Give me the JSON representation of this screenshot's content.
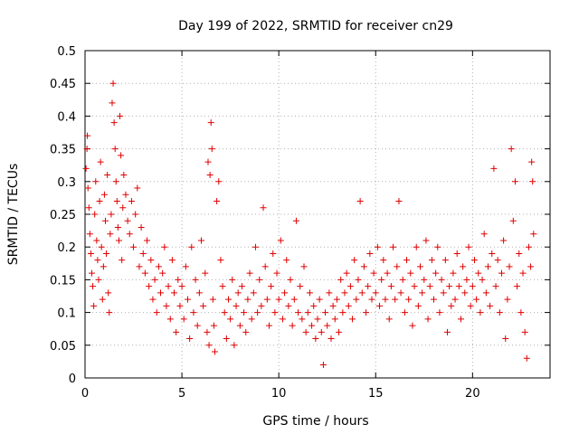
{
  "chart_data": {
    "type": "scatter",
    "title": "Day 199 of 2022, SRMTID for receiver cn29",
    "xlabel": "GPS time / hours",
    "ylabel": "SRMTID / TECUs",
    "xlim": [
      0,
      24
    ],
    "ylim": [
      0,
      0.5
    ],
    "x_ticks": [
      0,
      5,
      10,
      15,
      20
    ],
    "x_tick_labels": [
      "0",
      "5",
      "10",
      "15",
      "20"
    ],
    "y_ticks": [
      0,
      0.05,
      0.1,
      0.15,
      0.2,
      0.25,
      0.3,
      0.35,
      0.4,
      0.45,
      0.5
    ],
    "y_tick_labels": [
      "0",
      "0.05",
      "0.1",
      "0.15",
      "0.2",
      "0.25",
      "0.3",
      "0.35",
      "0.4",
      "0.45",
      "0.5"
    ],
    "grid": true,
    "marker": "plus",
    "series_color": "#e00000",
    "series": [
      {
        "name": "SRMTID",
        "points": [
          [
            0.05,
            0.32
          ],
          [
            0.1,
            0.35
          ],
          [
            0.12,
            0.37
          ],
          [
            0.15,
            0.29
          ],
          [
            0.2,
            0.26
          ],
          [
            0.25,
            0.22
          ],
          [
            0.3,
            0.19
          ],
          [
            0.35,
            0.16
          ],
          [
            0.4,
            0.14
          ],
          [
            0.45,
            0.11
          ],
          [
            0.5,
            0.25
          ],
          [
            0.55,
            0.3
          ],
          [
            0.6,
            0.21
          ],
          [
            0.65,
            0.18
          ],
          [
            0.7,
            0.15
          ],
          [
            0.75,
            0.27
          ],
          [
            0.8,
            0.33
          ],
          [
            0.85,
            0.2
          ],
          [
            0.9,
            0.12
          ],
          [
            0.95,
            0.17
          ],
          [
            1.0,
            0.28
          ],
          [
            1.05,
            0.24
          ],
          [
            1.1,
            0.19
          ],
          [
            1.15,
            0.31
          ],
          [
            1.2,
            0.13
          ],
          [
            1.25,
            0.1
          ],
          [
            1.3,
            0.22
          ],
          [
            1.35,
            0.25
          ],
          [
            1.4,
            0.42
          ],
          [
            1.45,
            0.45
          ],
          [
            1.5,
            0.39
          ],
          [
            1.55,
            0.35
          ],
          [
            1.6,
            0.3
          ],
          [
            1.65,
            0.27
          ],
          [
            1.7,
            0.23
          ],
          [
            1.75,
            0.21
          ],
          [
            1.8,
            0.4
          ],
          [
            1.85,
            0.34
          ],
          [
            1.9,
            0.18
          ],
          [
            1.95,
            0.26
          ],
          [
            2.0,
            0.31
          ],
          [
            2.1,
            0.28
          ],
          [
            2.2,
            0.24
          ],
          [
            2.3,
            0.22
          ],
          [
            2.4,
            0.27
          ],
          [
            2.5,
            0.2
          ],
          [
            2.6,
            0.25
          ],
          [
            2.7,
            0.29
          ],
          [
            2.8,
            0.17
          ],
          [
            2.9,
            0.23
          ],
          [
            3.0,
            0.19
          ],
          [
            3.1,
            0.16
          ],
          [
            3.2,
            0.21
          ],
          [
            3.3,
            0.14
          ],
          [
            3.4,
            0.18
          ],
          [
            3.5,
            0.12
          ],
          [
            3.6,
            0.15
          ],
          [
            3.7,
            0.1
          ],
          [
            3.8,
            0.17
          ],
          [
            3.9,
            0.13
          ],
          [
            4.0,
            0.16
          ],
          [
            4.1,
            0.2
          ],
          [
            4.2,
            0.11
          ],
          [
            4.3,
            0.14
          ],
          [
            4.4,
            0.09
          ],
          [
            4.5,
            0.18
          ],
          [
            4.6,
            0.13
          ],
          [
            4.7,
            0.07
          ],
          [
            4.8,
            0.15
          ],
          [
            4.9,
            0.11
          ],
          [
            5.0,
            0.14
          ],
          [
            5.1,
            0.09
          ],
          [
            5.2,
            0.17
          ],
          [
            5.3,
            0.12
          ],
          [
            5.4,
            0.06
          ],
          [
            5.5,
            0.2
          ],
          [
            5.6,
            0.1
          ],
          [
            5.7,
            0.15
          ],
          [
            5.8,
            0.08
          ],
          [
            5.9,
            0.13
          ],
          [
            6.0,
            0.21
          ],
          [
            6.1,
            0.11
          ],
          [
            6.2,
            0.16
          ],
          [
            6.3,
            0.07
          ],
          [
            6.35,
            0.33
          ],
          [
            6.4,
            0.05
          ],
          [
            6.45,
            0.31
          ],
          [
            6.5,
            0.39
          ],
          [
            6.55,
            0.35
          ],
          [
            6.6,
            0.12
          ],
          [
            6.65,
            0.08
          ],
          [
            6.7,
            0.04
          ],
          [
            6.8,
            0.27
          ],
          [
            6.9,
            0.3
          ],
          [
            7.0,
            0.18
          ],
          [
            7.1,
            0.14
          ],
          [
            7.2,
            0.1
          ],
          [
            7.3,
            0.06
          ],
          [
            7.4,
            0.12
          ],
          [
            7.5,
            0.09
          ],
          [
            7.6,
            0.15
          ],
          [
            7.7,
            0.05
          ],
          [
            7.8,
            0.11
          ],
          [
            7.9,
            0.13
          ],
          [
            8.0,
            0.08
          ],
          [
            8.1,
            0.14
          ],
          [
            8.2,
            0.1
          ],
          [
            8.3,
            0.07
          ],
          [
            8.4,
            0.12
          ],
          [
            8.5,
            0.16
          ],
          [
            8.6,
            0.09
          ],
          [
            8.7,
            0.13
          ],
          [
            8.8,
            0.2
          ],
          [
            8.9,
            0.1
          ],
          [
            9.0,
            0.15
          ],
          [
            9.1,
            0.11
          ],
          [
            9.2,
            0.26
          ],
          [
            9.3,
            0.17
          ],
          [
            9.4,
            0.12
          ],
          [
            9.5,
            0.08
          ],
          [
            9.6,
            0.14
          ],
          [
            9.7,
            0.19
          ],
          [
            9.8,
            0.1
          ],
          [
            9.9,
            0.16
          ],
          [
            10.0,
            0.12
          ],
          [
            10.1,
            0.21
          ],
          [
            10.2,
            0.09
          ],
          [
            10.3,
            0.13
          ],
          [
            10.4,
            0.18
          ],
          [
            10.5,
            0.11
          ],
          [
            10.6,
            0.15
          ],
          [
            10.7,
            0.08
          ],
          [
            10.8,
            0.12
          ],
          [
            10.9,
            0.24
          ],
          [
            11.0,
            0.1
          ],
          [
            11.1,
            0.14
          ],
          [
            11.2,
            0.09
          ],
          [
            11.3,
            0.17
          ],
          [
            11.4,
            0.07
          ],
          [
            11.5,
            0.1
          ],
          [
            11.6,
            0.13
          ],
          [
            11.7,
            0.08
          ],
          [
            11.8,
            0.11
          ],
          [
            11.9,
            0.06
          ],
          [
            12.0,
            0.09
          ],
          [
            12.1,
            0.12
          ],
          [
            12.2,
            0.07
          ],
          [
            12.3,
            0.02
          ],
          [
            12.4,
            0.1
          ],
          [
            12.5,
            0.08
          ],
          [
            12.6,
            0.13
          ],
          [
            12.7,
            0.06
          ],
          [
            12.8,
            0.11
          ],
          [
            12.9,
            0.09
          ],
          [
            13.0,
            0.12
          ],
          [
            13.1,
            0.07
          ],
          [
            13.2,
            0.15
          ],
          [
            13.3,
            0.1
          ],
          [
            13.4,
            0.13
          ],
          [
            13.5,
            0.16
          ],
          [
            13.6,
            0.11
          ],
          [
            13.7,
            0.14
          ],
          [
            13.8,
            0.09
          ],
          [
            13.9,
            0.18
          ],
          [
            14.0,
            0.12
          ],
          [
            14.1,
            0.15
          ],
          [
            14.2,
            0.27
          ],
          [
            14.3,
            0.13
          ],
          [
            14.4,
            0.17
          ],
          [
            14.5,
            0.1
          ],
          [
            14.6,
            0.14
          ],
          [
            14.7,
            0.19
          ],
          [
            14.8,
            0.12
          ],
          [
            14.9,
            0.16
          ],
          [
            15.0,
            0.13
          ],
          [
            15.1,
            0.2
          ],
          [
            15.2,
            0.11
          ],
          [
            15.3,
            0.15
          ],
          [
            15.4,
            0.18
          ],
          [
            15.5,
            0.12
          ],
          [
            15.6,
            0.16
          ],
          [
            15.7,
            0.09
          ],
          [
            15.8,
            0.14
          ],
          [
            15.9,
            0.2
          ],
          [
            16.0,
            0.12
          ],
          [
            16.1,
            0.17
          ],
          [
            16.2,
            0.27
          ],
          [
            16.3,
            0.13
          ],
          [
            16.4,
            0.15
          ],
          [
            16.5,
            0.1
          ],
          [
            16.6,
            0.18
          ],
          [
            16.7,
            0.12
          ],
          [
            16.8,
            0.16
          ],
          [
            16.9,
            0.08
          ],
          [
            17.0,
            0.14
          ],
          [
            17.1,
            0.2
          ],
          [
            17.2,
            0.11
          ],
          [
            17.3,
            0.17
          ],
          [
            17.4,
            0.13
          ],
          [
            17.5,
            0.15
          ],
          [
            17.6,
            0.21
          ],
          [
            17.7,
            0.09
          ],
          [
            17.8,
            0.14
          ],
          [
            17.9,
            0.18
          ],
          [
            18.0,
            0.12
          ],
          [
            18.1,
            0.16
          ],
          [
            18.2,
            0.2
          ],
          [
            18.3,
            0.1
          ],
          [
            18.4,
            0.15
          ],
          [
            18.5,
            0.13
          ],
          [
            18.6,
            0.18
          ],
          [
            18.7,
            0.07
          ],
          [
            18.8,
            0.14
          ],
          [
            18.9,
            0.11
          ],
          [
            19.0,
            0.16
          ],
          [
            19.1,
            0.12
          ],
          [
            19.2,
            0.19
          ],
          [
            19.3,
            0.14
          ],
          [
            19.4,
            0.09
          ],
          [
            19.5,
            0.17
          ],
          [
            19.6,
            0.13
          ],
          [
            19.7,
            0.15
          ],
          [
            19.8,
            0.2
          ],
          [
            19.9,
            0.11
          ],
          [
            20.0,
            0.14
          ],
          [
            20.1,
            0.18
          ],
          [
            20.2,
            0.12
          ],
          [
            20.3,
            0.16
          ],
          [
            20.4,
            0.1
          ],
          [
            20.5,
            0.15
          ],
          [
            20.6,
            0.22
          ],
          [
            20.7,
            0.13
          ],
          [
            20.8,
            0.17
          ],
          [
            20.9,
            0.11
          ],
          [
            21.0,
            0.19
          ],
          [
            21.1,
            0.32
          ],
          [
            21.2,
            0.14
          ],
          [
            21.3,
            0.18
          ],
          [
            21.4,
            0.1
          ],
          [
            21.5,
            0.16
          ],
          [
            21.6,
            0.21
          ],
          [
            21.7,
            0.06
          ],
          [
            21.8,
            0.12
          ],
          [
            21.9,
            0.17
          ],
          [
            22.0,
            0.35
          ],
          [
            22.1,
            0.24
          ],
          [
            22.2,
            0.3
          ],
          [
            22.3,
            0.14
          ],
          [
            22.4,
            0.19
          ],
          [
            22.5,
            0.1
          ],
          [
            22.6,
            0.16
          ],
          [
            22.7,
            0.07
          ],
          [
            22.8,
            0.03
          ],
          [
            22.9,
            0.2
          ],
          [
            23.0,
            0.17
          ],
          [
            23.05,
            0.33
          ],
          [
            23.1,
            0.3
          ],
          [
            23.15,
            0.22
          ]
        ]
      }
    ]
  }
}
